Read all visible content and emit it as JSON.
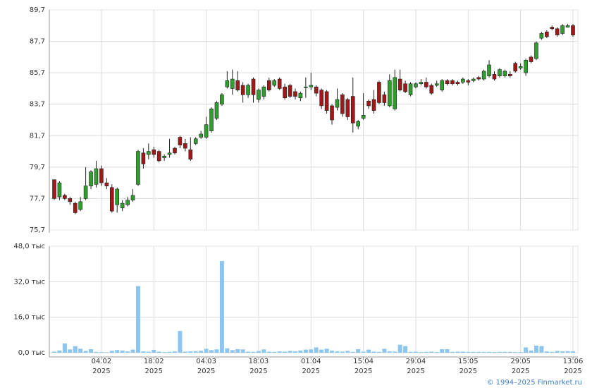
{
  "chart_data": {
    "type": "candlestick",
    "categories": [
      null,
      null,
      null,
      null,
      null,
      null,
      null,
      null,
      null,
      [
        "04.02",
        "2025"
      ],
      null,
      null,
      null,
      null,
      null,
      null,
      null,
      null,
      null,
      [
        "18.02",
        "2025"
      ],
      null,
      null,
      null,
      null,
      null,
      null,
      null,
      null,
      null,
      [
        "04.03",
        "2025"
      ],
      null,
      null,
      null,
      null,
      null,
      null,
      null,
      null,
      null,
      [
        "18.03",
        "2025"
      ],
      null,
      null,
      null,
      null,
      null,
      null,
      null,
      null,
      null,
      [
        "01.04",
        "2025"
      ],
      null,
      null,
      null,
      null,
      null,
      null,
      null,
      null,
      null,
      [
        "15.04",
        "2025"
      ],
      null,
      null,
      null,
      null,
      null,
      null,
      null,
      null,
      null,
      [
        "29.04",
        "2025"
      ],
      null,
      null,
      null,
      null,
      null,
      null,
      null,
      null,
      null,
      [
        "15.05",
        "2025"
      ],
      null,
      null,
      null,
      null,
      null,
      null,
      null,
      null,
      null,
      [
        "29.05",
        "2025"
      ],
      null,
      null,
      null,
      null,
      null,
      null,
      null,
      null,
      null,
      [
        "13.06",
        "2025"
      ]
    ],
    "open": [
      78.9,
      77.8,
      77.9,
      77.7,
      77.4,
      77.0,
      77.7,
      78.5,
      78.6,
      79.6,
      78.7,
      78.4,
      77.3,
      77.1,
      77.3,
      77.6,
      78.6,
      80.6,
      80.5,
      80.8,
      80.7,
      80.3,
      80.5,
      80.9,
      81.6,
      81.2,
      80.8,
      81.2,
      81.6,
      81.6,
      82.0,
      82.8,
      83.7,
      84.8,
      84.7,
      85.2,
      84.9,
      84.3,
      85.3,
      84.0,
      84.2,
      85.2,
      84.9,
      85.3,
      84.8,
      84.9,
      84.5,
      84.1,
      84.8,
      84.8,
      84.8,
      84.6,
      84.5,
      83.6,
      83.5,
      84.3,
      84.0,
      84.2,
      82.3,
      82.8,
      83.9,
      84.0,
      85.1,
      84.3,
      83.6,
      83.4,
      85.3,
      85.0,
      84.3,
      84.8,
      85.0,
      85.1,
      84.9,
      84.9,
      84.6,
      85.2,
      85.2,
      85.1,
      85.1,
      85.2,
      85.2,
      85.4,
      85.3,
      85.5,
      85.6,
      85.5,
      85.5,
      85.6,
      86.3,
      86.0,
      85.7,
      86.7,
      86.6,
      87.9,
      88.3,
      88.6,
      88.5,
      88.2,
      88.6,
      88.7
    ],
    "high": [
      78.9,
      78.8,
      78.0,
      77.8,
      77.5,
      77.8,
      79.7,
      79.5,
      80.1,
      79.8,
      79.0,
      78.6,
      78.4,
      77.6,
      77.8,
      78.3,
      80.8,
      80.9,
      81.2,
      81.0,
      80.8,
      80.5,
      81.5,
      81.0,
      81.7,
      81.5,
      81.6,
      81.6,
      82.0,
      82.9,
      83.5,
      83.9,
      84.4,
      85.8,
      85.9,
      85.8,
      85.1,
      85.0,
      85.4,
      84.7,
      84.9,
      85.4,
      85.3,
      85.4,
      85.0,
      85.0,
      84.7,
      84.5,
      85.4,
      85.7,
      84.9,
      84.7,
      84.6,
      83.7,
      84.7,
      84.4,
      84.1,
      85.4,
      82.7,
      84.4,
      84.0,
      84.6,
      85.2,
      84.5,
      85.6,
      85.9,
      85.9,
      85.2,
      85.1,
      85.1,
      85.3,
      85.4,
      85.0,
      85.2,
      85.3,
      85.3,
      85.3,
      85.2,
      85.4,
      85.3,
      85.4,
      85.5,
      85.9,
      86.5,
      85.8,
      86.0,
      85.9,
      85.8,
      86.4,
      86.3,
      86.6,
      86.8,
      87.7,
      88.3,
      88.4,
      88.7,
      88.6,
      88.8,
      88.8,
      88.8
    ],
    "low": [
      77.6,
      77.6,
      77.6,
      77.3,
      76.7,
      76.9,
      77.6,
      78.3,
      78.4,
      78.5,
      78.3,
      76.8,
      76.8,
      76.9,
      77.2,
      77.5,
      78.5,
      79.6,
      80.2,
      80.3,
      80.0,
      80.1,
      80.3,
      80.5,
      80.9,
      80.7,
      80.1,
      81.1,
      81.5,
      81.5,
      81.9,
      82.7,
      83.6,
      84.7,
      84.3,
      84.5,
      83.8,
      84.1,
      83.8,
      83.8,
      84.0,
      84.5,
      84.8,
      84.6,
      84.0,
      84.1,
      84.0,
      83.9,
      84.1,
      84.6,
      84.2,
      83.4,
      83.1,
      82.4,
      83.3,
      82.9,
      82.7,
      81.9,
      82.1,
      82.7,
      83.4,
      83.1,
      83.7,
      83.6,
      83.5,
      83.3,
      84.5,
      84.4,
      84.2,
      84.7,
      84.9,
      84.7,
      84.3,
      84.8,
      84.5,
      84.9,
      84.9,
      84.9,
      85.0,
      84.9,
      85.1,
      85.2,
      85.2,
      85.4,
      85.2,
      85.4,
      85.4,
      85.4,
      85.7,
      85.9,
      85.5,
      86.3,
      86.5,
      87.8,
      87.9,
      88.4,
      88.0,
      88.1,
      88.6,
      88.0
    ],
    "close": [
      77.7,
      78.7,
      77.7,
      77.5,
      76.8,
      77.5,
      78.5,
      79.4,
      79.6,
      78.7,
      78.5,
      76.9,
      78.3,
      77.4,
      77.6,
      77.9,
      80.7,
      79.9,
      80.7,
      80.5,
      80.1,
      80.4,
      80.6,
      80.6,
      81.1,
      80.9,
      80.2,
      81.5,
      81.8,
      82.4,
      83.4,
      83.8,
      84.3,
      85.2,
      85.3,
      84.6,
      84.3,
      84.9,
      84.3,
      84.6,
      84.8,
      84.6,
      85.2,
      84.7,
      84.1,
      84.2,
      84.2,
      84.4,
      84.8,
      84.9,
      84.4,
      83.6,
      83.3,
      82.7,
      84.0,
      83.1,
      82.9,
      82.5,
      82.6,
      83.0,
      83.6,
      83.3,
      83.8,
      83.8,
      85.2,
      85.4,
      84.6,
      84.5,
      85.0,
      85.0,
      85.1,
      84.8,
      84.4,
      85.0,
      85.2,
      85.0,
      85.0,
      85.0,
      85.3,
      85.1,
      85.3,
      85.3,
      85.8,
      86.2,
      85.3,
      85.9,
      85.8,
      85.5,
      85.8,
      86.1,
      86.5,
      86.4,
      87.6,
      88.2,
      88.0,
      88.5,
      88.1,
      88.7,
      88.7,
      88.1
    ],
    "up_color": "#2e9e2e",
    "down_color": "#a01818",
    "ylim": [
      75.7,
      89.7
    ],
    "yticks": [
      {
        "value": 75.7,
        "label": "75,7"
      },
      {
        "value": 77.7,
        "label": "77,7"
      },
      {
        "value": 79.7,
        "label": "79,7"
      },
      {
        "value": 81.7,
        "label": "81,7"
      },
      {
        "value": 83.7,
        "label": "83,7"
      },
      {
        "value": 85.7,
        "label": "85,7"
      },
      {
        "value": 87.7,
        "label": "87,7"
      },
      {
        "value": 89.7,
        "label": "89,7"
      }
    ],
    "volume": [
      0.5,
      1.0,
      4.2,
      1.5,
      3.0,
      1.8,
      0.8,
      1.6,
      0.4,
      0.3,
      0.2,
      0.9,
      1.2,
      1.0,
      0.6,
      1.4,
      30.0,
      0.6,
      0.5,
      1.3,
      0.5,
      0.3,
      0.4,
      0.6,
      9.8,
      0.5,
      0.6,
      0.7,
      0.9,
      1.8,
      1.2,
      1.5,
      41.3,
      2.0,
      1.2,
      1.6,
      1.5,
      0.5,
      0.4,
      0.8,
      1.5,
      0.5,
      0.4,
      0.6,
      0.5,
      0.8,
      0.6,
      1.0,
      1.4,
      1.5,
      2.4,
      1.4,
      1.8,
      0.9,
      0.6,
      0.5,
      0.8,
      0.4,
      1.6,
      0.5,
      1.4,
      0.5,
      0.4,
      1.8,
      0.6,
      0.5,
      3.6,
      3.0,
      0.4,
      0.5,
      0.3,
      0.4,
      0.5,
      0.3,
      1.6,
      1.6,
      0.4,
      0.5,
      0.5,
      0.4,
      0.4,
      0.4,
      0.4,
      0.4,
      0.3,
      0.4,
      0.4,
      0.4,
      0.3,
      0.3,
      2.4,
      1.0,
      3.2,
      3.0,
      0.6,
      0.4,
      0.8,
      0.6,
      0.7,
      0.6
    ],
    "volume_color": "#8cc6ee",
    "volume_ylim": [
      0,
      48
    ],
    "volume_yticks": [
      {
        "value": 0,
        "label": "0,0 тыс"
      },
      {
        "value": 16,
        "label": "16,0 тыс"
      },
      {
        "value": 32,
        "label": "32,0 тыс"
      },
      {
        "value": 48,
        "label": "48,0 тыс"
      }
    ],
    "grid": true,
    "watermark": "© 1994–2025 Finmarket.ru"
  }
}
